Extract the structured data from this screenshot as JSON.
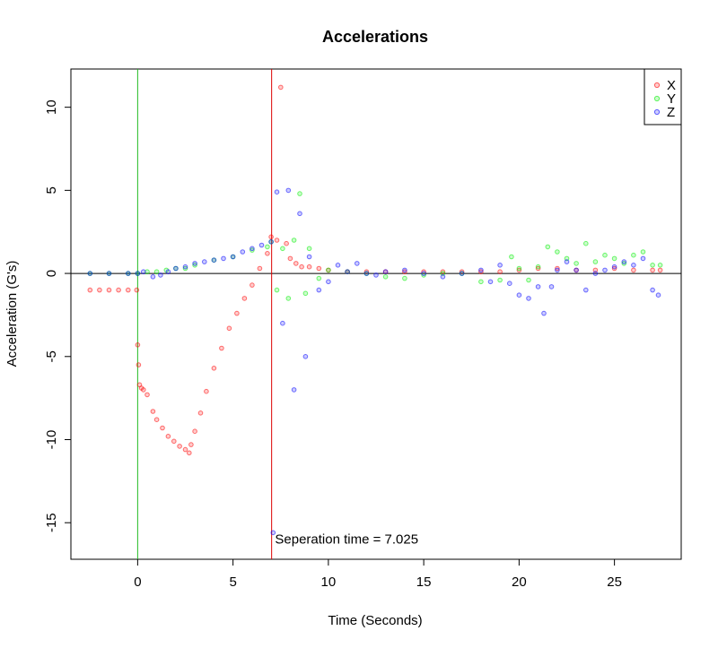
{
  "chart_data": {
    "type": "scatter",
    "title": "Accelerations",
    "xlabel": "Time (Seconds)",
    "ylabel": "Acceleration (G's)",
    "xlim": [
      -3.5,
      28.5
    ],
    "ylim": [
      -17.2,
      12.3
    ],
    "x_ticks": [
      0,
      5,
      10,
      15,
      20,
      25
    ],
    "y_ticks": [
      -15,
      -10,
      -5,
      0,
      5,
      10
    ],
    "grid": false,
    "legend_position": "top-right",
    "reference_lines": {
      "horizontal_y": 0,
      "vertical": [
        {
          "x": 0,
          "color": "#22bb22"
        },
        {
          "x": 7.025,
          "color": "#dd0000"
        }
      ]
    },
    "annotation": {
      "text": "Seperation time = 7.025",
      "x": 7.2,
      "y": -16.0
    },
    "series": [
      {
        "name": "X",
        "color": "#ff0000",
        "x": [
          -2.5,
          -2.0,
          -1.5,
          -1.0,
          -0.5,
          -0.05,
          0.0,
          0.05,
          0.1,
          0.2,
          0.3,
          0.5,
          0.8,
          1.0,
          1.3,
          1.6,
          1.9,
          2.2,
          2.5,
          2.7,
          2.8,
          3.0,
          3.3,
          3.6,
          4.0,
          4.4,
          4.8,
          5.2,
          5.6,
          6.0,
          6.4,
          6.8,
          7.0,
          7.3,
          7.5,
          7.8,
          8.0,
          8.3,
          8.6,
          9.0,
          9.5,
          10.0,
          11.0,
          12.0,
          13.0,
          14.0,
          15.0,
          16.0,
          17.0,
          18.0,
          19.0,
          20.0,
          21.0,
          22.0,
          23.0,
          24.0,
          25.0,
          26.0,
          27.0,
          27.4
        ],
        "y": [
          -1.0,
          -1.0,
          -1.0,
          -1.0,
          -1.0,
          -1.0,
          -4.3,
          -5.5,
          -6.7,
          -6.9,
          -7.0,
          -7.3,
          -8.3,
          -8.8,
          -9.3,
          -9.8,
          -10.1,
          -10.4,
          -10.6,
          -10.8,
          -10.3,
          -9.5,
          -8.4,
          -7.1,
          -5.7,
          -4.5,
          -3.3,
          -2.4,
          -1.5,
          -0.7,
          0.3,
          1.2,
          2.2,
          2.0,
          11.2,
          1.8,
          0.9,
          0.6,
          0.4,
          0.4,
          0.3,
          0.2,
          0.1,
          0.1,
          0.1,
          0.1,
          0.1,
          0.1,
          0.1,
          0.1,
          0.1,
          0.2,
          0.3,
          0.3,
          0.2,
          0.2,
          0.3,
          0.2,
          0.2,
          0.2
        ]
      },
      {
        "name": "Y",
        "color": "#00ee00",
        "x": [
          -2.5,
          -1.5,
          -0.5,
          0.0,
          0.5,
          1.0,
          1.5,
          2.0,
          2.5,
          3.0,
          4.0,
          5.0,
          6.0,
          6.8,
          7.0,
          7.3,
          7.6,
          7.9,
          8.2,
          8.5,
          8.8,
          9.0,
          9.5,
          10.0,
          11.0,
          12.0,
          13.0,
          14.0,
          15.0,
          16.0,
          17.0,
          18.0,
          19.0,
          19.6,
          20.0,
          20.5,
          21.0,
          21.5,
          22.0,
          22.5,
          23.0,
          23.5,
          24.0,
          24.5,
          25.0,
          25.5,
          26.0,
          26.5,
          27.0,
          27.4
        ],
        "y": [
          0.0,
          0.0,
          0.0,
          0.0,
          0.1,
          0.1,
          0.2,
          0.3,
          0.3,
          0.5,
          0.8,
          1.0,
          1.4,
          1.6,
          1.9,
          -1.0,
          1.5,
          -1.5,
          2.0,
          4.8,
          -1.2,
          1.5,
          -0.3,
          0.2,
          0.1,
          0.0,
          -0.2,
          -0.3,
          -0.1,
          0.0,
          0.0,
          -0.5,
          -0.4,
          1.0,
          0.3,
          -0.4,
          0.4,
          1.6,
          1.3,
          0.9,
          0.6,
          1.8,
          0.7,
          1.1,
          0.9,
          0.6,
          1.1,
          1.3,
          0.5,
          0.5
        ]
      },
      {
        "name": "Z",
        "color": "#0000ff",
        "x": [
          -2.5,
          -1.5,
          -0.5,
          0.0,
          0.3,
          0.8,
          1.2,
          1.6,
          2.0,
          2.5,
          3.0,
          3.5,
          4.0,
          4.5,
          5.0,
          5.5,
          6.0,
          6.5,
          7.0,
          7.1,
          7.3,
          7.6,
          7.9,
          8.2,
          8.5,
          8.8,
          9.0,
          9.5,
          10.0,
          10.5,
          11.0,
          11.5,
          12.0,
          12.5,
          13.0,
          14.0,
          15.0,
          16.0,
          17.0,
          18.0,
          18.5,
          19.0,
          19.5,
          20.0,
          20.5,
          21.0,
          21.3,
          21.7,
          22.0,
          22.5,
          23.0,
          23.5,
          24.0,
          24.5,
          25.0,
          25.5,
          26.0,
          26.5,
          27.0,
          27.3
        ],
        "y": [
          0.0,
          0.0,
          0.0,
          0.0,
          0.1,
          -0.2,
          -0.1,
          0.1,
          0.3,
          0.4,
          0.6,
          0.7,
          0.8,
          0.9,
          1.0,
          1.3,
          1.5,
          1.7,
          1.9,
          -15.6,
          4.9,
          -3.0,
          5.0,
          -7.0,
          3.6,
          -5.0,
          1.0,
          -1.0,
          -0.5,
          0.5,
          0.1,
          0.6,
          0.0,
          -0.1,
          0.1,
          0.2,
          0.0,
          -0.2,
          0.0,
          0.2,
          -0.5,
          0.5,
          -0.6,
          -1.3,
          -1.5,
          -0.8,
          -2.4,
          -0.8,
          0.2,
          0.7,
          0.2,
          -1.0,
          0.0,
          0.2,
          0.4,
          0.7,
          0.5,
          0.9,
          -1.0,
          -1.3
        ]
      }
    ]
  }
}
